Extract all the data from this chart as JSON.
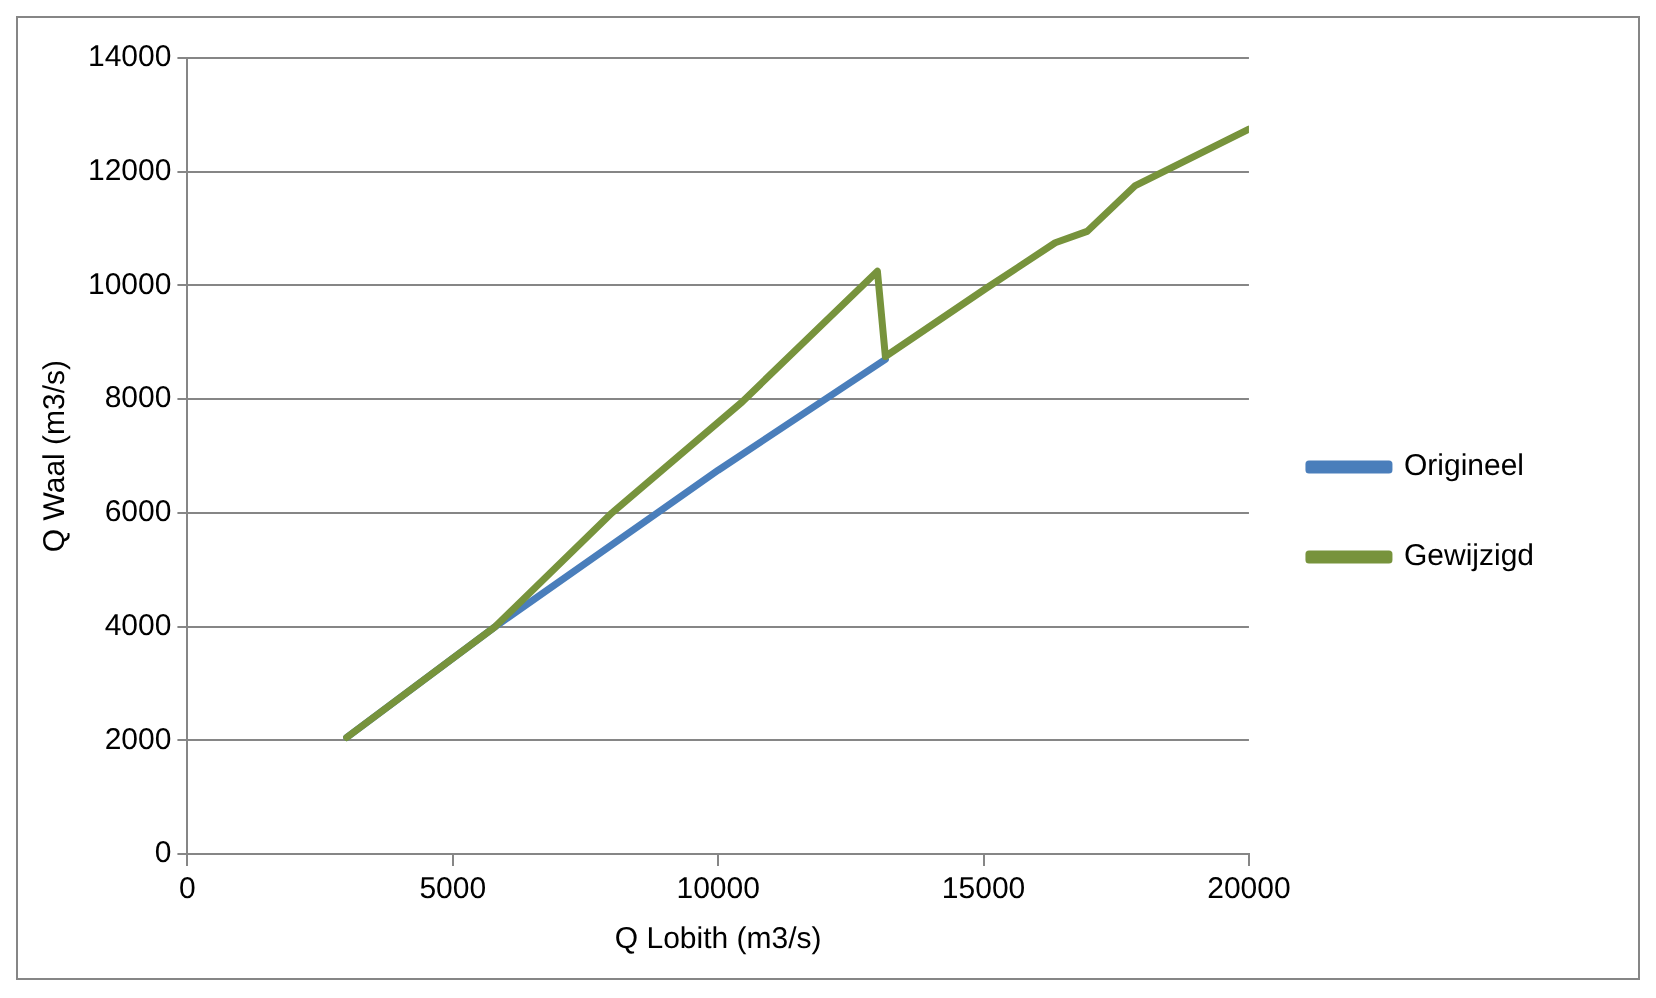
{
  "chart_data": {
    "type": "line",
    "xlabel": "Q Lobith (m3/s)",
    "ylabel": "Q Waal (m3/s)",
    "xlim": [
      0,
      20000
    ],
    "xticks": [
      0,
      5000,
      10000,
      15000,
      20000
    ],
    "ylim": [
      0,
      14000
    ],
    "yticks": [
      0,
      2000,
      4000,
      6000,
      8000,
      10000,
      12000,
      14000
    ],
    "grid": "y",
    "legend": "right",
    "marker": "none",
    "line_style": "solid",
    "series": [
      {
        "name": "Origineel",
        "color": "#4a7ebb",
        "x": [
          3000,
          5800,
          10000,
          13150
        ],
        "values": [
          2050,
          4000,
          6750,
          8700
        ]
      },
      {
        "name": "Gewijzigd",
        "color": "#77933c",
        "x": [
          3000,
          5800,
          8000,
          10450,
          13000,
          13150,
          15050,
          16350,
          16950,
          17850,
          18600,
          20000
        ],
        "values": [
          2050,
          4000,
          6000,
          7950,
          10250,
          8750,
          9950,
          10750,
          10950,
          11750,
          12100,
          12750
        ]
      }
    ]
  }
}
